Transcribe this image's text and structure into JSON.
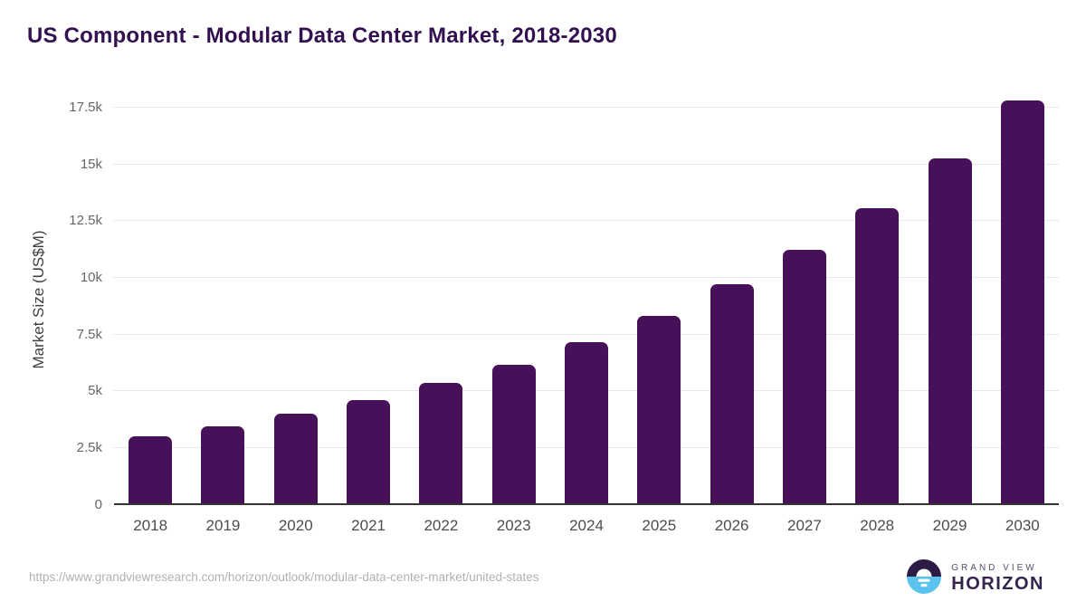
{
  "chart_data": {
    "type": "bar",
    "title": "US Component - Modular Data Center Market, 2018-2030",
    "categories": [
      "2018",
      "2019",
      "2020",
      "2021",
      "2022",
      "2023",
      "2024",
      "2025",
      "2026",
      "2027",
      "2028",
      "2029",
      "2030"
    ],
    "values": [
      3000,
      3450,
      4000,
      4590,
      5350,
      6150,
      7150,
      8320,
      9700,
      11220,
      13050,
      15250,
      17800
    ],
    "xlabel": "",
    "ylabel": "Market Size (US$M)",
    "ylim": [
      0,
      18000
    ],
    "yticks": [
      {
        "value": 0,
        "label": "0"
      },
      {
        "value": 2500,
        "label": "2.5k"
      },
      {
        "value": 5000,
        "label": "5k"
      },
      {
        "value": 7500,
        "label": "7.5k"
      },
      {
        "value": 10000,
        "label": "10k"
      },
      {
        "value": 12500,
        "label": "12.5k"
      },
      {
        "value": 15000,
        "label": "15k"
      },
      {
        "value": 17500,
        "label": "17.5k"
      }
    ],
    "grid": "horizontal",
    "legend": "none",
    "bar_color": "#471159"
  },
  "colors": {
    "title": "#331150",
    "axis_line": "#333333",
    "gridline": "#e8e8e8",
    "y_tick_label": "#666666",
    "x_tick_label": "#4d4d4d",
    "source_url": "#b3b0b0",
    "logo_dark": "#2d1b47",
    "logo_blue": "#5bc3ed",
    "logo_text_dark": "#33254e",
    "logo_text_light": "#54506b"
  },
  "footer": {
    "source_url": "https://www.grandviewresearch.com/horizon/outlook/modular-data-center-market/united-states",
    "logo": {
      "brand_line1": "GRAND VIEW",
      "brand_line2": "HORIZON"
    }
  }
}
